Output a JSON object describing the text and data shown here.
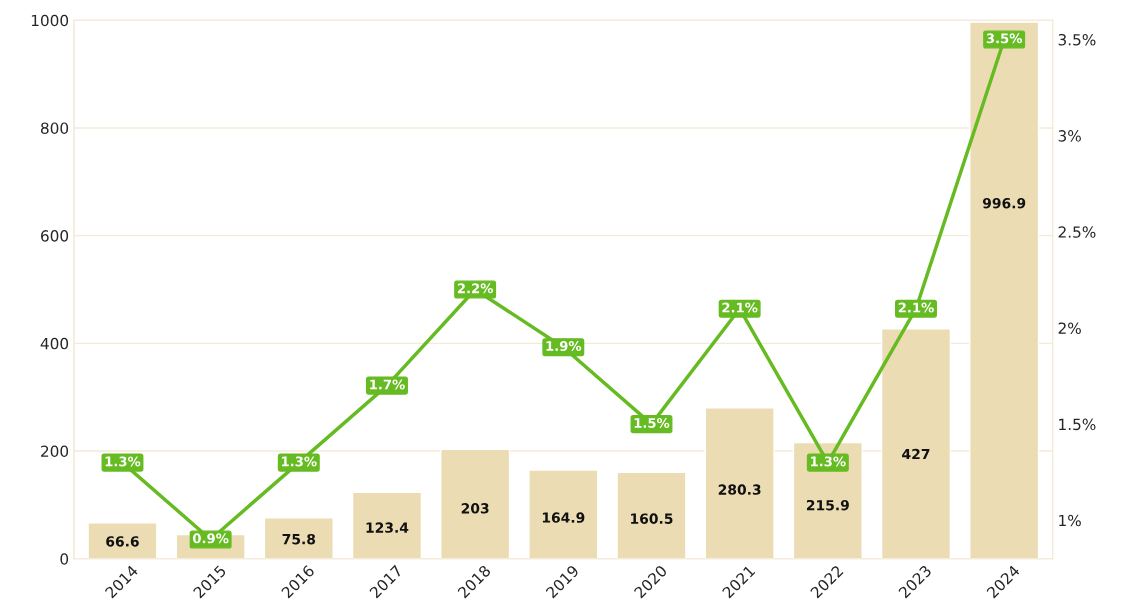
{
  "chart_data": {
    "type": "bar",
    "categories": [
      "2014",
      "2015",
      "2016",
      "2017",
      "2018",
      "2019",
      "2020",
      "2021",
      "2022",
      "2023",
      "2024"
    ],
    "series": [
      {
        "color": "#ecdcb4",
        "values": [
          66.6,
          45,
          75.8,
          123.4,
          203,
          164.9,
          160.5,
          280.3,
          215.9,
          427,
          996.9
        ],
        "value_labels": [
          "66.6",
          null,
          "75.8",
          "123.4",
          "203",
          "164.9",
          "160.5",
          "280.3",
          "215.9",
          "427",
          "996.9"
        ]
      },
      {
        "type": "line",
        "axis": "y2",
        "marker": "square",
        "color": "#66bb22",
        "values": [
          1.3,
          0.9,
          1.3,
          1.7,
          2.2,
          1.9,
          1.5,
          2.1,
          1.3,
          2.1,
          3.5
        ],
        "value_labels": [
          "1.3%",
          "0.9%",
          "1.3%",
          "1.7%",
          "2.2%",
          "1.9%",
          "1.5%",
          "2.1%",
          "1.3%",
          "2.1%",
          "3.5%"
        ]
      }
    ],
    "ylim": [
      0,
      1000
    ],
    "yticks": [
      0,
      200,
      400,
      600,
      800,
      1000
    ],
    "y2lim": [
      0.8,
      3.6
    ],
    "y2ticks": [
      {
        "value": 1,
        "label": "1%"
      },
      {
        "value": 1.5,
        "label": "1.5%"
      },
      {
        "value": 2,
        "label": "2%"
      },
      {
        "value": 2.5,
        "label": "2.5%"
      },
      {
        "value": 3,
        "label": "3%"
      },
      {
        "value": 3.5,
        "label": "3.5%"
      }
    ],
    "grid": "y",
    "line_style": "solid"
  }
}
